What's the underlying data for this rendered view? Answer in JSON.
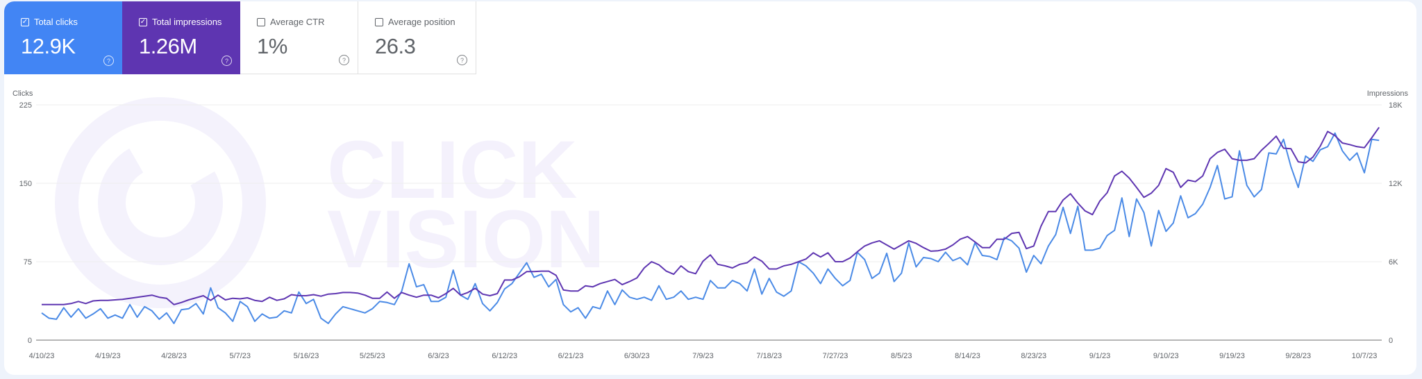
{
  "metrics": [
    {
      "label": "Total clicks",
      "value": "12.9K",
      "checked": true,
      "color": "#4285f4"
    },
    {
      "label": "Total impressions",
      "value": "1.26M",
      "checked": true,
      "color": "#5e35b1"
    },
    {
      "label": "Average CTR",
      "value": "1%",
      "checked": false
    },
    {
      "label": "Average position",
      "value": "26.3",
      "checked": false
    }
  ],
  "watermark": {
    "text": [
      "CLICK",
      "VISION"
    ]
  },
  "chart_data": {
    "type": "line",
    "x_start": "4/10/23",
    "x_end": "10/9/23",
    "x_tick_labels": [
      "4/10/23",
      "4/19/23",
      "4/28/23",
      "5/7/23",
      "5/16/23",
      "5/25/23",
      "6/3/23",
      "6/12/23",
      "6/21/23",
      "6/30/23",
      "7/9/23",
      "7/18/23",
      "7/27/23",
      "8/5/23",
      "8/14/23",
      "8/23/23",
      "9/1/23",
      "9/10/23",
      "9/19/23",
      "9/28/23",
      "10/7/23"
    ],
    "y_left": {
      "label": "Clicks",
      "ticks": [
        "0",
        "75",
        "150",
        "225"
      ],
      "range": [
        0,
        225
      ]
    },
    "y_right": {
      "label": "Impressions",
      "ticks": [
        "0",
        "6K",
        "12K",
        "18K"
      ],
      "range": [
        0,
        18000
      ]
    },
    "grid": true,
    "series": [
      {
        "name": "Clicks",
        "axis": "left",
        "color": "#4a8ae6",
        "values": [
          26,
          21,
          20,
          31,
          22,
          30,
          21,
          25,
          30,
          21,
          24,
          21,
          34,
          22,
          32,
          28,
          20,
          26,
          16,
          29,
          30,
          35,
          25,
          50,
          31,
          26,
          18,
          37,
          32,
          18,
          25,
          21,
          22,
          28,
          26,
          46,
          35,
          39,
          21,
          16,
          25,
          32,
          30,
          28,
          26,
          30,
          37,
          36,
          34,
          47,
          73,
          51,
          53,
          37,
          37,
          41,
          67,
          43,
          39,
          54,
          35,
          28,
          36,
          49,
          54,
          64,
          74,
          60,
          63,
          51,
          58,
          34,
          27,
          31,
          21,
          32,
          30,
          47,
          34,
          48,
          41,
          39,
          41,
          38,
          52,
          39,
          41,
          47,
          39,
          41,
          39,
          57,
          50,
          50,
          57,
          54,
          47,
          68,
          44,
          59,
          46,
          42,
          47,
          75,
          71,
          64,
          54,
          68,
          59,
          52,
          57,
          84,
          77,
          59,
          64,
          83,
          56,
          64,
          93,
          70,
          79,
          78,
          75,
          84,
          76,
          79,
          72,
          93,
          81,
          80,
          77,
          98,
          95,
          88,
          65,
          81,
          73,
          90,
          101,
          127,
          102,
          128,
          86,
          86,
          88,
          100,
          105,
          136,
          99,
          135,
          122,
          90,
          124,
          104,
          112,
          138,
          117,
          121,
          130,
          146,
          167,
          135,
          137,
          181,
          148,
          137,
          144,
          179,
          178,
          192,
          166,
          146,
          176,
          171,
          182,
          185,
          198,
          181,
          172,
          179,
          160,
          192,
          191
        ]
      },
      {
        "name": "Impressions",
        "axis": "right",
        "color": "#5e35b1",
        "values": [
          2720,
          2720,
          2720,
          2720,
          2800,
          2960,
          2800,
          3000,
          3040,
          3040,
          3080,
          3120,
          3200,
          3280,
          3360,
          3440,
          3280,
          3200,
          2720,
          2880,
          3080,
          3240,
          3400,
          3040,
          3440,
          3080,
          3200,
          3160,
          3240,
          3040,
          2960,
          3280,
          3040,
          3160,
          3480,
          3400,
          3400,
          3480,
          3360,
          3520,
          3560,
          3640,
          3640,
          3600,
          3440,
          3200,
          3200,
          3680,
          3200,
          3640,
          3440,
          3280,
          3440,
          3440,
          3240,
          3560,
          3960,
          3440,
          3640,
          3960,
          3520,
          3400,
          3560,
          4600,
          4600,
          4840,
          5240,
          5240,
          5280,
          5280,
          4960,
          3840,
          3760,
          3760,
          4160,
          4080,
          4320,
          4480,
          4640,
          4240,
          4480,
          4760,
          5520,
          6000,
          5760,
          5280,
          5040,
          5680,
          5240,
          5080,
          6040,
          6520,
          5800,
          5680,
          5520,
          5800,
          5920,
          6360,
          6040,
          5440,
          5440,
          5680,
          5800,
          6000,
          6200,
          6680,
          6360,
          6680,
          6000,
          6000,
          6280,
          6760,
          7200,
          7440,
          7600,
          7280,
          6960,
          7280,
          7600,
          7400,
          7080,
          6800,
          6840,
          6960,
          7280,
          7720,
          7920,
          7520,
          7080,
          7080,
          7720,
          7720,
          8160,
          8240,
          7000,
          7200,
          8720,
          9840,
          9840,
          10720,
          11200,
          10480,
          9880,
          9600,
          10640,
          11280,
          12560,
          12920,
          12400,
          11680,
          10920,
          11240,
          11840,
          13120,
          12840,
          11680,
          12240,
          12120,
          12560,
          13880,
          14360,
          14600,
          13880,
          13760,
          13760,
          13880,
          14520,
          15040,
          15600,
          14680,
          14640,
          13640,
          13560,
          14000,
          14840,
          15960,
          15640,
          15080,
          14960,
          14800,
          14720,
          15480,
          16280
        ]
      }
    ]
  }
}
